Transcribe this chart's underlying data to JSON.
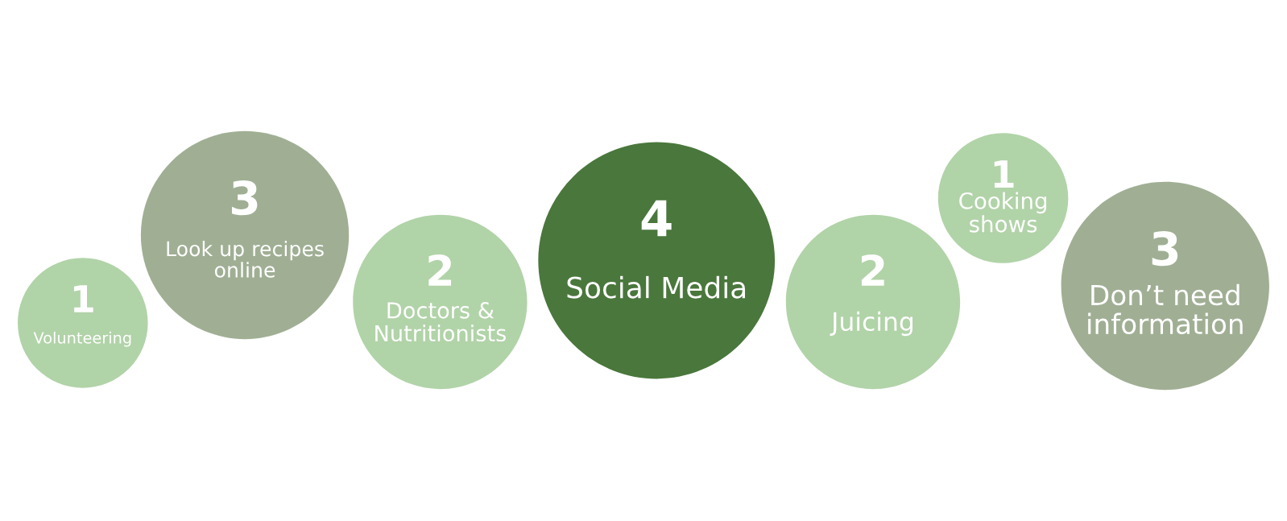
{
  "chart_data": {
    "type": "other",
    "categories": [
      "Volunteering",
      "Look up recipes\nonline",
      "Doctors &\nNutritionists",
      "Social Media",
      "Juicing",
      "Cooking\nshows",
      "Don’t need\ninformation"
    ],
    "values": [
      1,
      3,
      2,
      4,
      2,
      1,
      3
    ],
    "colors": [
      "#b1d3a8",
      "#a0af94",
      "#b1d3a8",
      "#4a773c",
      "#b1d3a8",
      "#b1d3a8",
      "#a0af94"
    ],
    "data_labels": true
  }
}
